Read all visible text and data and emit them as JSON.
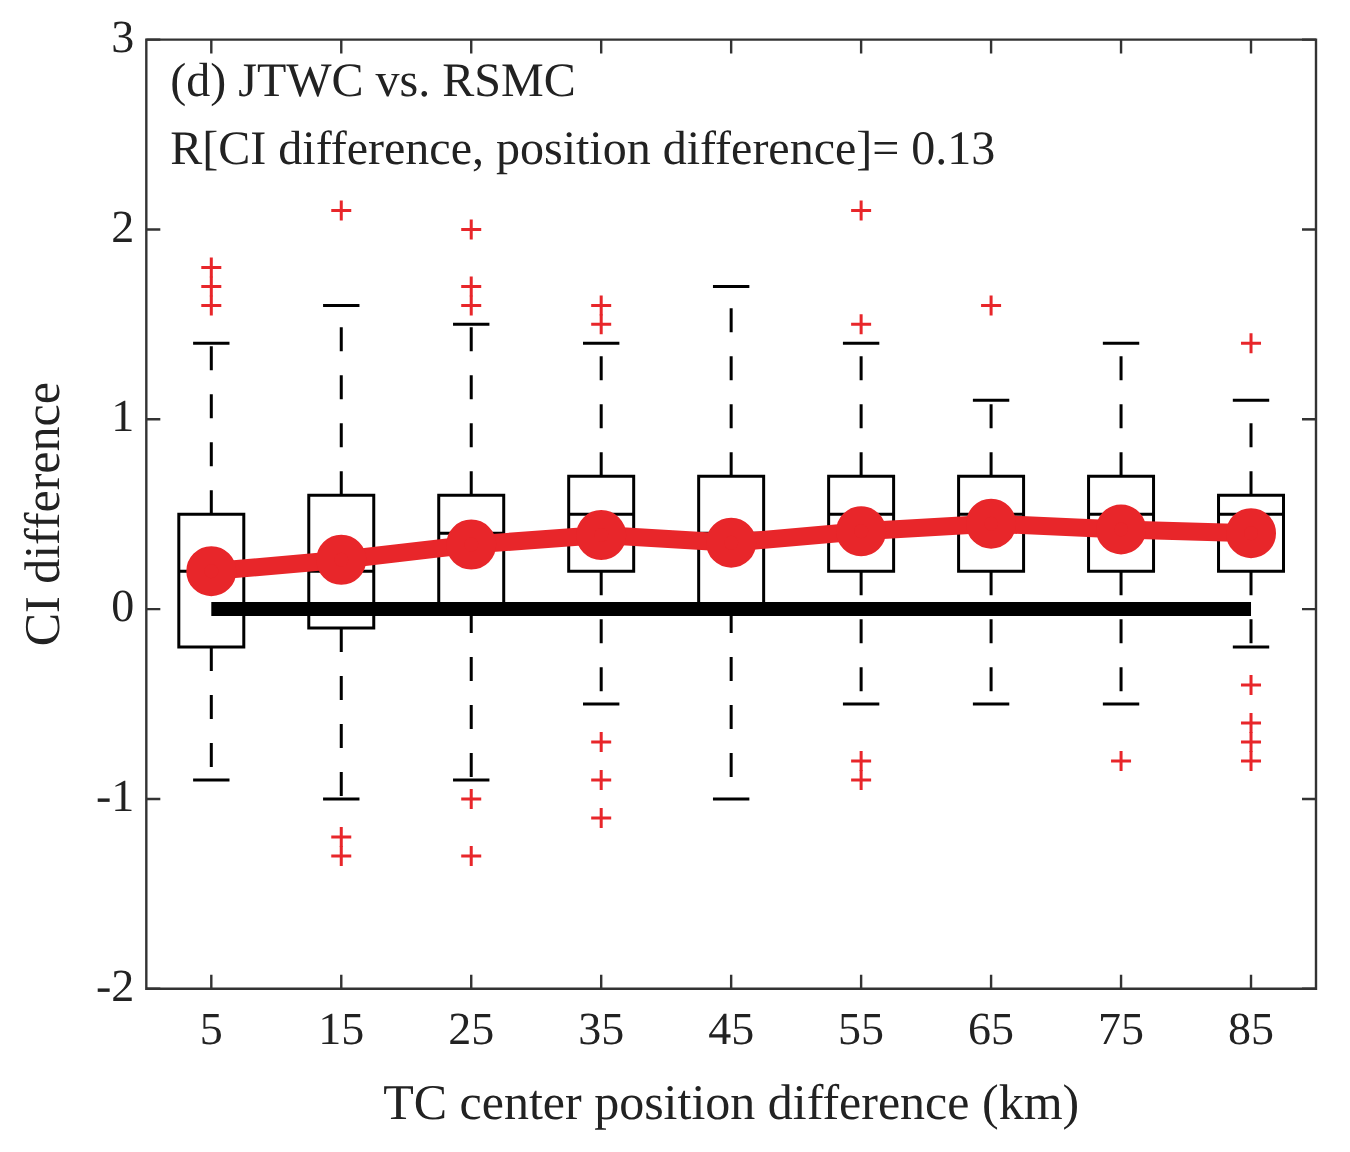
{
  "chart_data": {
    "type": "box",
    "xlabel": "TC center position difference (km)",
    "ylabel": "CI difference",
    "annotations": [
      "(d) JTWC vs. RSMC",
      "R[CI difference, position difference]= 0.13"
    ],
    "categories": [
      "5",
      "15",
      "25",
      "35",
      "45",
      "55",
      "65",
      "75",
      "85"
    ],
    "ylim": [
      -2,
      3
    ],
    "yticks": [
      -2,
      -1,
      0,
      1,
      2,
      3
    ],
    "grid": false,
    "legend": false,
    "marker": "circle",
    "ref_lines": [
      {
        "axis": "y",
        "value": 0,
        "color": "#000000"
      }
    ],
    "series": [
      {
        "color": "#000000",
        "boxes": [
          {
            "low": -0.9,
            "q1": -0.2,
            "median": 0.2,
            "q3": 0.5,
            "high": 1.4,
            "outliers": [
              1.8,
              1.7,
              1.6
            ]
          },
          {
            "low": -1.0,
            "q1": -0.1,
            "median": 0.2,
            "q3": 0.6,
            "high": 1.6,
            "outliers": [
              2.1,
              -1.2,
              -1.3
            ]
          },
          {
            "low": -0.9,
            "q1": 0,
            "median": 0.4,
            "q3": 0.6,
            "high": 1.5,
            "outliers": [
              2.0,
              1.7,
              1.6,
              -1.0,
              -1.3
            ]
          },
          {
            "low": -0.5,
            "q1": 0.2,
            "median": 0.5,
            "q3": 0.7,
            "high": 1.4,
            "outliers": [
              1.6,
              1.5,
              -0.7,
              -0.9,
              -1.1
            ]
          },
          {
            "low": -1.0,
            "q1": 0,
            "median": 0.4,
            "q3": 0.7,
            "high": 1.7
          },
          {
            "low": -0.5,
            "q1": 0.2,
            "median": 0.5,
            "q3": 0.7,
            "high": 1.4,
            "outliers": [
              2.1,
              1.5,
              -0.8,
              -0.9
            ]
          },
          {
            "low": -0.5,
            "q1": 0.2,
            "median": 0.5,
            "q3": 0.7,
            "high": 1.1,
            "outliers": [
              1.6
            ]
          },
          {
            "low": -0.5,
            "q1": 0.2,
            "median": 0.5,
            "q3": 0.7,
            "high": 1.4,
            "outliers": [
              -0.8
            ]
          },
          {
            "low": -0.2,
            "q1": 0.2,
            "median": 0.5,
            "q3": 0.6,
            "high": 1.1,
            "outliers": [
              1.4,
              -0.4,
              -0.6,
              -0.7,
              -0.8
            ]
          }
        ]
      },
      {
        "type": "line",
        "color": "#e8262a",
        "values": [
          0.2,
          0.26,
          0.34,
          0.39,
          0.35,
          0.41,
          0.45,
          0.42,
          0.4
        ]
      }
    ]
  }
}
